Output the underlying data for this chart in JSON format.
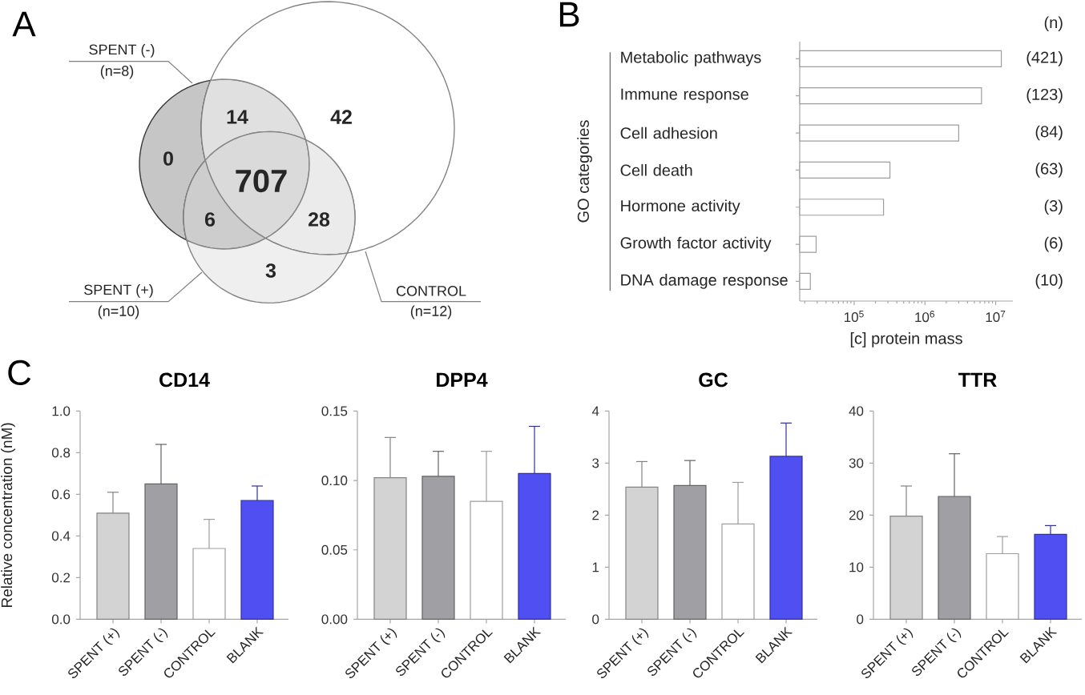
{
  "chart_data": [
    {
      "type": "other",
      "title": "A",
      "annotations": [
        "SPENT (-)",
        "(n=8)",
        "SPENT (+)",
        "(n=10)",
        "CONTROL",
        "(n=12)",
        "0",
        "14",
        "42",
        "707",
        "6",
        "28",
        "3"
      ]
    },
    {
      "type": "bar",
      "title": "B",
      "orientation": "horizontal",
      "categories": [
        "Metabolic pathways",
        "Immune response",
        "Cell adhesion",
        "Cell death",
        "Hormone activity",
        "Growth factor activity",
        "DNA damage response"
      ],
      "values": [
        12000000,
        6300000,
        3000000,
        320000,
        260000,
        29000,
        24000
      ],
      "color": "#ffffff",
      "log": "x",
      "xlim": [
        17000,
        17500000
      ],
      "xticks": [
        {
          "value": 100000,
          "label": "10$^{5}$"
        },
        {
          "value": 1000000,
          "label": "10$^{6}$"
        },
        {
          "value": 10000000,
          "label": "10$^{7}$"
        }
      ],
      "xlabel": "[c] protein mass",
      "ylabel": "GO categories",
      "annotations": [
        "(n)",
        "(421)",
        "(123)",
        "(84)",
        "(63)",
        "(3)",
        "(6)",
        "(10)"
      ]
    },
    {
      "type": "bar",
      "title": "CD14",
      "categories": [
        "SPENT (+)",
        "SPENT (-)",
        "CONTROL",
        "BLANK"
      ],
      "values": [
        0.51,
        0.65,
        0.34,
        0.57
      ],
      "colors": [
        "#d3d3d3",
        "#9f9fa4",
        "#ffffff",
        "#5050f2"
      ],
      "errors": [
        [
          0.51,
          0.61
        ],
        [
          0.65,
          0.84
        ],
        [
          0.34,
          0.48
        ],
        [
          0.57,
          0.64
        ]
      ],
      "ylim": [
        0,
        1
      ],
      "yticks": [
        {
          "value": 0,
          "label": "0.0"
        },
        0.2,
        0.4,
        0.6,
        0.8,
        {
          "value": 1,
          "label": "1.0"
        }
      ],
      "ylabel": "Relative concentration (nM)",
      "annotations": [
        "C"
      ]
    },
    {
      "type": "bar",
      "title": "DPP4",
      "categories": [
        "SPENT (+)",
        "SPENT (-)",
        "CONTROL",
        "BLANK"
      ],
      "values": [
        0.102,
        0.103,
        0.085,
        0.105
      ],
      "colors": [
        "#d3d3d3",
        "#9f9fa4",
        "#ffffff",
        "#5050f2"
      ],
      "errors": [
        [
          0.102,
          0.131
        ],
        [
          0.103,
          0.121
        ],
        [
          0.085,
          0.121
        ],
        [
          0.105,
          0.139
        ]
      ],
      "ylim": [
        0,
        0.15
      ],
      "yticks": [
        {
          "value": 0,
          "label": "0.00"
        },
        0.05,
        {
          "value": 0.1,
          "label": "0.10"
        },
        0.15
      ]
    },
    {
      "type": "bar",
      "title": "GC",
      "categories": [
        "SPENT (+)",
        "SPENT (-)",
        "CONTROL",
        "BLANK"
      ],
      "values": [
        2.54,
        2.57,
        1.83,
        3.13
      ],
      "colors": [
        "#d3d3d3",
        "#9f9fa4",
        "#ffffff",
        "#5050f2"
      ],
      "errors": [
        [
          2.54,
          3.03
        ],
        [
          2.57,
          3.05
        ],
        [
          1.83,
          2.63
        ],
        [
          3.13,
          3.77
        ]
      ],
      "ylim": [
        0,
        4
      ],
      "yticks": [
        0,
        1,
        2,
        3,
        4
      ]
    },
    {
      "type": "bar",
      "title": "TTR",
      "categories": [
        "SPENT (+)",
        "SPENT (-)",
        "CONTROL",
        "BLANK"
      ],
      "values": [
        19.8,
        23.6,
        12.6,
        16.3
      ],
      "colors": [
        "#d3d3d3",
        "#9f9fa4",
        "#ffffff",
        "#5050f2"
      ],
      "errors": [
        [
          19.8,
          25.6
        ],
        [
          23.6,
          31.8
        ],
        [
          12.6,
          15.9
        ],
        [
          16.3,
          18.0
        ]
      ],
      "ylim": [
        0,
        40
      ],
      "yticks": [
        0,
        10,
        20,
        30,
        40
      ]
    }
  ]
}
